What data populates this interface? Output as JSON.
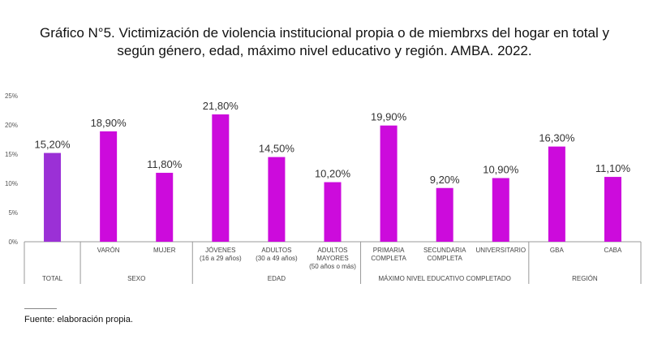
{
  "title_lines": [
    "Gráfico N°5. Victimización de violencia institucional propia o de miembrxs del hogar en total y",
    "según género, edad, máximo nivel educativo y región. AMBA. 2022."
  ],
  "source": "Fuente: elaboración propia.",
  "colors": {
    "total": "#9b30d6",
    "others": "#cc0bdc",
    "axis": "#999999",
    "grid": "#d9d9d9"
  },
  "chart_data": {
    "type": "bar",
    "ylim": [
      0,
      25
    ],
    "yticks": [
      "0%",
      "5%",
      "10%",
      "15%",
      "20%",
      "25%"
    ],
    "grid": false,
    "legend": "none",
    "categories": [
      {
        "label": [
          "TOTAL"
        ],
        "group": "TOTAL",
        "value": 15.2,
        "data_label": "15,20%"
      },
      {
        "label": [
          "VARÓN"
        ],
        "group": "SEXO",
        "value": 18.9,
        "data_label": "18,90%"
      },
      {
        "label": [
          "MUJER"
        ],
        "group": "SEXO",
        "value": 11.8,
        "data_label": "11,80%"
      },
      {
        "label": [
          "JÓVENES",
          "(16 a 29 años)"
        ],
        "group": "EDAD",
        "value": 21.8,
        "data_label": "21,80%"
      },
      {
        "label": [
          "ADULTOS",
          "(30 a 49 años)"
        ],
        "group": "EDAD",
        "value": 14.5,
        "data_label": "14,50%"
      },
      {
        "label": [
          "ADULTOS",
          "MAYORES",
          "(50 años o más)"
        ],
        "group": "EDAD",
        "value": 10.2,
        "data_label": "10,20%"
      },
      {
        "label": [
          "PRIMARIA",
          "COMPLETA"
        ],
        "group": "MÁXIMO NIVEL EDUCATIVO COMPLETADO",
        "value": 19.9,
        "data_label": "19,90%"
      },
      {
        "label": [
          "SECUNDARIA",
          "COMPLETA"
        ],
        "group": "MÁXIMO NIVEL EDUCATIVO COMPLETADO",
        "value": 9.2,
        "data_label": "9,20%"
      },
      {
        "label": [
          "UNIVERSITARIO"
        ],
        "group": "MÁXIMO NIVEL EDUCATIVO COMPLETADO",
        "value": 10.9,
        "data_label": "10,90%"
      },
      {
        "label": [
          "GBA"
        ],
        "group": "REGIÓN",
        "value": 16.3,
        "data_label": "16,30%"
      },
      {
        "label": [
          "CABA"
        ],
        "group": "REGIÓN",
        "value": 11.1,
        "data_label": "11,10%"
      }
    ],
    "groups": [
      {
        "label": "TOTAL",
        "count": 1
      },
      {
        "label": "SEXO",
        "count": 2
      },
      {
        "label": "EDAD",
        "count": 3
      },
      {
        "label": "MÁXIMO NIVEL EDUCATIVO COMPLETADO",
        "count": 3
      },
      {
        "label": "REGIÓN",
        "count": 2
      }
    ]
  }
}
